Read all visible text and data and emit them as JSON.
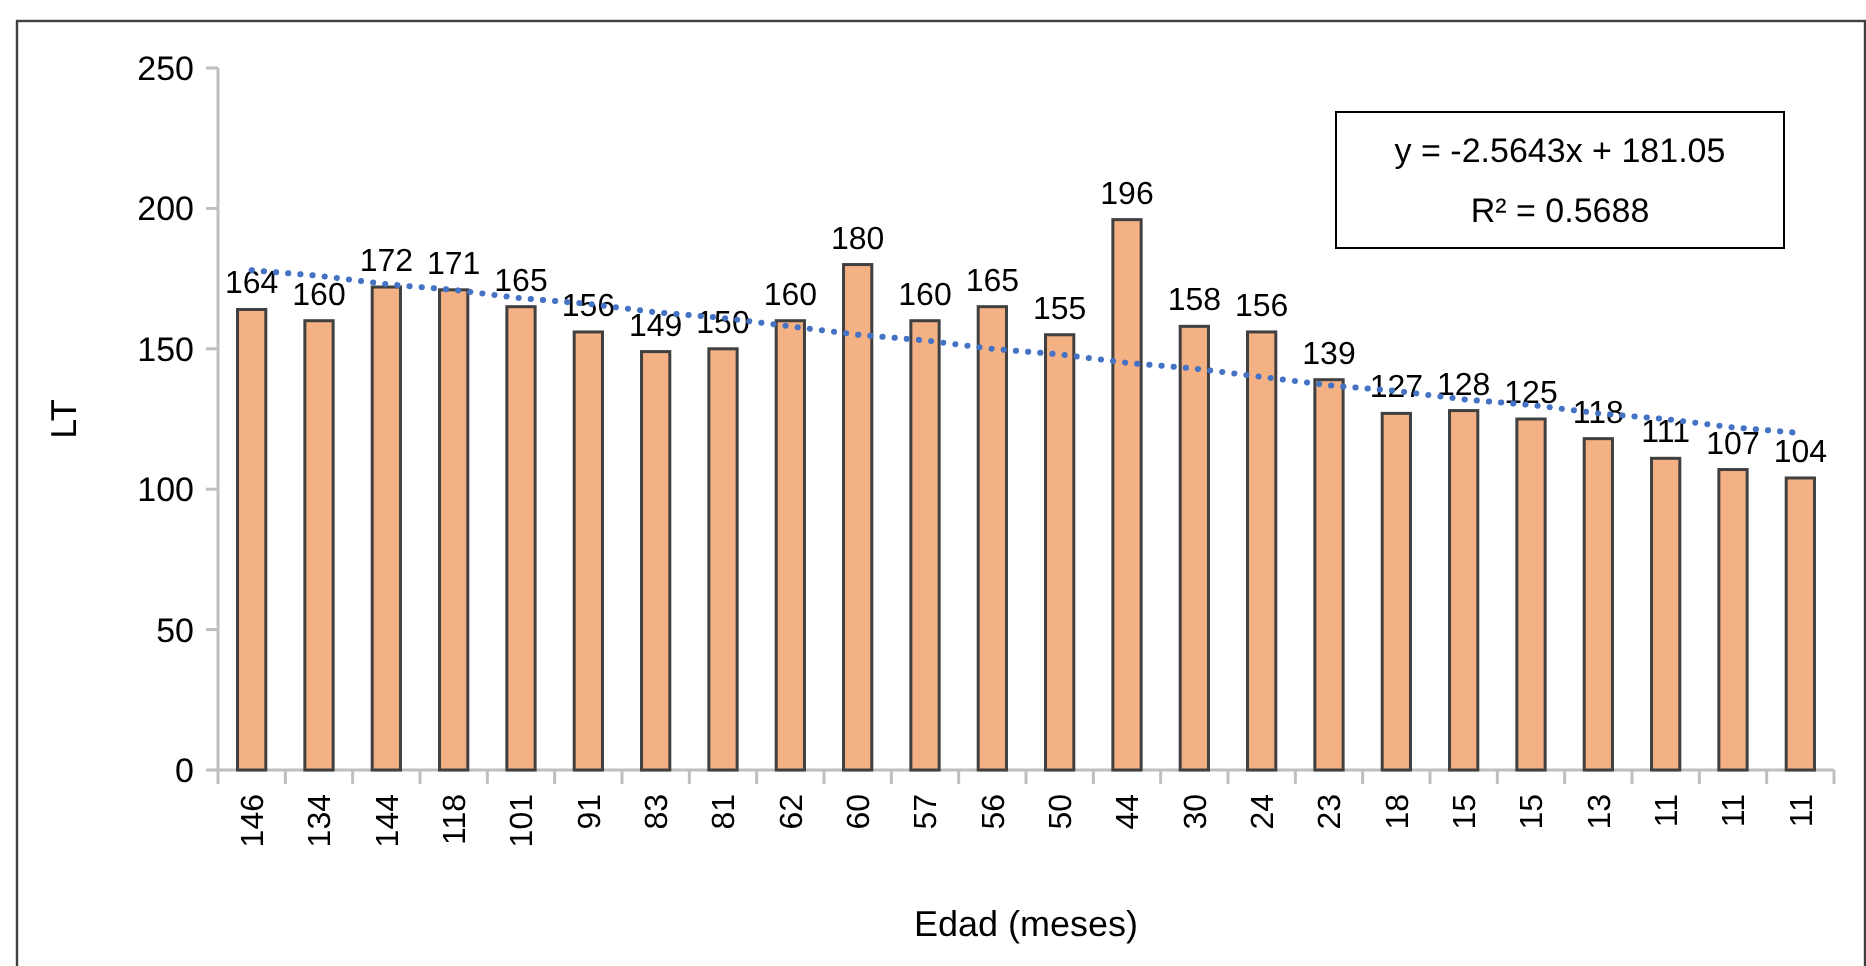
{
  "chart_data": {
    "type": "bar",
    "categories": [
      "146",
      "134",
      "144",
      "118",
      "101",
      "91",
      "83",
      "81",
      "62",
      "60",
      "57",
      "56",
      "50",
      "44",
      "30",
      "24",
      "23",
      "18",
      "15",
      "15",
      "13",
      "11",
      "11",
      "11"
    ],
    "series": [
      {
        "color": "#f4b183",
        "values": [
          164,
          160,
          172,
          171,
          165,
          156,
          149,
          150,
          160,
          180,
          160,
          165,
          155,
          196,
          158,
          156,
          139,
          127,
          128,
          125,
          118,
          111,
          107,
          104
        ],
        "value_labels": [
          "164",
          "160",
          "172",
          "171",
          "165",
          "156",
          "149",
          "150",
          "160",
          "180",
          "160",
          "165",
          "155",
          "196",
          "158",
          "156",
          "139",
          "127",
          "128",
          "125",
          "118",
          "111",
          "107",
          "104"
        ]
      },
      {
        "type": "line",
        "color": "#4472c4",
        "line_style": "dotted",
        "values": [
          178,
          176,
          173,
          171,
          168,
          166,
          163,
          161,
          158,
          155,
          153,
          150,
          148,
          145,
          143,
          140,
          137,
          135,
          132,
          130,
          127,
          125,
          122,
          120
        ]
      }
    ],
    "xlabel": "Edad (meses)",
    "ylabel": "LT",
    "ylim": [
      0,
      250
    ],
    "yticks": [
      0,
      50,
      100,
      150,
      200,
      250
    ],
    "annotations": [
      "y = -2.5643x + 181.05",
      "R² = 0.5688"
    ]
  }
}
